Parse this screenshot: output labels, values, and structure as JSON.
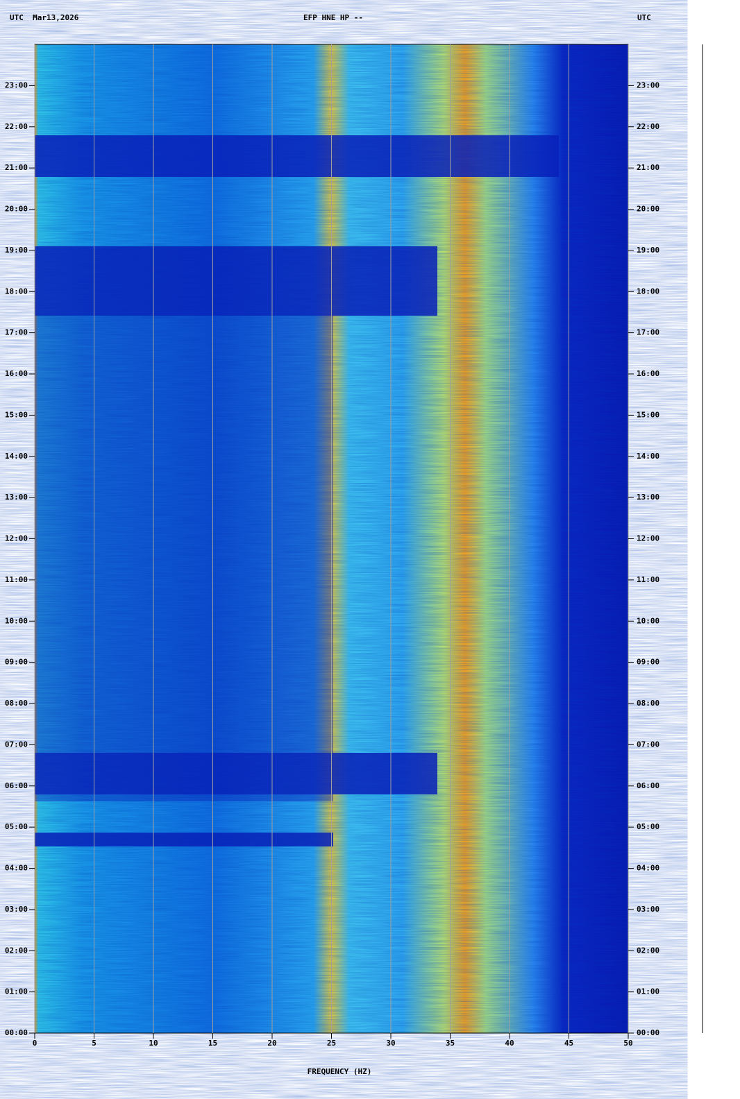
{
  "chart_data": {
    "type": "spectrogram",
    "title": "EFP HNE HP --",
    "date_label": "UTC  Mar13,2026",
    "right_label": "UTC",
    "x_label": "FREQUENCY (HZ)",
    "xlim": [
      0,
      50
    ],
    "xticks": [
      0,
      5,
      10,
      15,
      20,
      25,
      30,
      35,
      40,
      45,
      50
    ],
    "ylim": [
      0,
      24
    ],
    "yticks": [
      {
        "value": 0,
        "label": "00:00"
      },
      {
        "value": 1,
        "label": "01:00"
      },
      {
        "value": 2,
        "label": "02:00"
      },
      {
        "value": 3,
        "label": "03:00"
      },
      {
        "value": 4,
        "label": "04:00"
      },
      {
        "value": 5,
        "label": "05:00"
      },
      {
        "value": 6,
        "label": "06:00"
      },
      {
        "value": 7,
        "label": "07:00"
      },
      {
        "value": 8,
        "label": "08:00"
      },
      {
        "value": 9,
        "label": "09:00"
      },
      {
        "value": 10,
        "label": "10:00"
      },
      {
        "value": 11,
        "label": "11:00"
      },
      {
        "value": 12,
        "label": "12:00"
      },
      {
        "value": 13,
        "label": "13:00"
      },
      {
        "value": 14,
        "label": "14:00"
      },
      {
        "value": 15,
        "label": "15:00"
      },
      {
        "value": 16,
        "label": "16:00"
      },
      {
        "value": 17,
        "label": "17:00"
      },
      {
        "value": 18,
        "label": "18:00"
      },
      {
        "value": 19,
        "label": "19:00"
      },
      {
        "value": 20,
        "label": "20:00"
      },
      {
        "value": 21,
        "label": "21:00"
      },
      {
        "value": 22,
        "label": "22:00"
      },
      {
        "value": 23,
        "label": "23:00"
      }
    ],
    "grid": true
  }
}
